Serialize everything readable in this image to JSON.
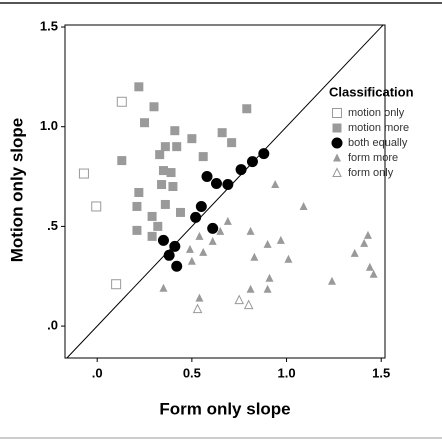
{
  "chart_data": {
    "type": "scatter",
    "x_label": "Form only slope",
    "y_label": "Motion only slope",
    "legend_title": "Classification",
    "legend": "right",
    "diagonal": true,
    "xlim": [
      -0.17,
      1.52
    ],
    "ylim": [
      -0.16,
      1.51
    ],
    "xticks": [
      {
        "value": 0,
        "label": ".0"
      },
      {
        "value": 0.5,
        "label": "0.5"
      },
      {
        "value": 1,
        "label": "1.0"
      },
      {
        "value": 1.5,
        "label": "1.5"
      }
    ],
    "yticks": [
      {
        "value": 0,
        "label": ".0"
      },
      {
        "value": 0.5,
        "label": ".5"
      },
      {
        "value": 1,
        "label": "1.0"
      },
      {
        "value": 1.5,
        "label": "1.5"
      }
    ],
    "series": [
      {
        "name": "motion only",
        "color": "#9a9a9a",
        "marker": "square-open",
        "x": [
          0.13,
          -0.07,
          -0.005,
          0.1
        ],
        "values": [
          1.125,
          0.765,
          0.6,
          0.21
        ]
      },
      {
        "name": "motion more",
        "color": "#9a9a9a",
        "marker": "square",
        "x": [
          0.22,
          0.3,
          0.25,
          0.41,
          0.13,
          0.22,
          0.33,
          0.36,
          0.42,
          0.5,
          0.66,
          0.71,
          0.79,
          0.56,
          0.34,
          0.39,
          0.4,
          0.35,
          0.21,
          0.29,
          0.21,
          0.29,
          0.32,
          0.44,
          0.36
        ],
        "values": [
          1.2,
          1.1,
          1.02,
          0.98,
          0.83,
          0.67,
          0.86,
          0.9,
          0.9,
          0.94,
          0.97,
          0.92,
          1.09,
          0.85,
          0.71,
          0.77,
          0.7,
          0.78,
          0.6,
          0.55,
          0.48,
          0.45,
          0.5,
          0.57,
          0.61
        ]
      },
      {
        "name": "both equally",
        "color": "#000000",
        "marker": "circle",
        "x": [
          0.88,
          0.82,
          0.76,
          0.69,
          0.63,
          0.58,
          0.55,
          0.52,
          0.61,
          0.35,
          0.41,
          0.38,
          0.42
        ],
        "values": [
          0.865,
          0.825,
          0.785,
          0.71,
          0.715,
          0.75,
          0.6,
          0.545,
          0.49,
          0.43,
          0.4,
          0.355,
          0.3
        ]
      },
      {
        "name": "form more",
        "color": "#9a9a9a",
        "marker": "triangle",
        "x": [
          0.94,
          1.09,
          0.65,
          0.61,
          0.54,
          0.56,
          0.5,
          0.49,
          0.69,
          0.81,
          0.83,
          0.9,
          0.97,
          1.01,
          0.91,
          0.9,
          1.24,
          1.36,
          1.43,
          1.41,
          1.44,
          1.46,
          0.35,
          0.54,
          0.81
        ],
        "values": [
          0.71,
          0.6,
          0.475,
          0.425,
          0.45,
          0.37,
          0.325,
          0.385,
          0.525,
          0.475,
          0.345,
          0.41,
          0.43,
          0.335,
          0.24,
          0.185,
          0.225,
          0.365,
          0.455,
          0.415,
          0.295,
          0.26,
          0.19,
          0.14,
          0.185
        ]
      },
      {
        "name": "form only",
        "color": "#9a9a9a",
        "marker": "triangle-open",
        "x": [
          0.53,
          0.75,
          0.8
        ],
        "values": [
          0.085,
          0.13,
          0.105
        ]
      }
    ]
  }
}
